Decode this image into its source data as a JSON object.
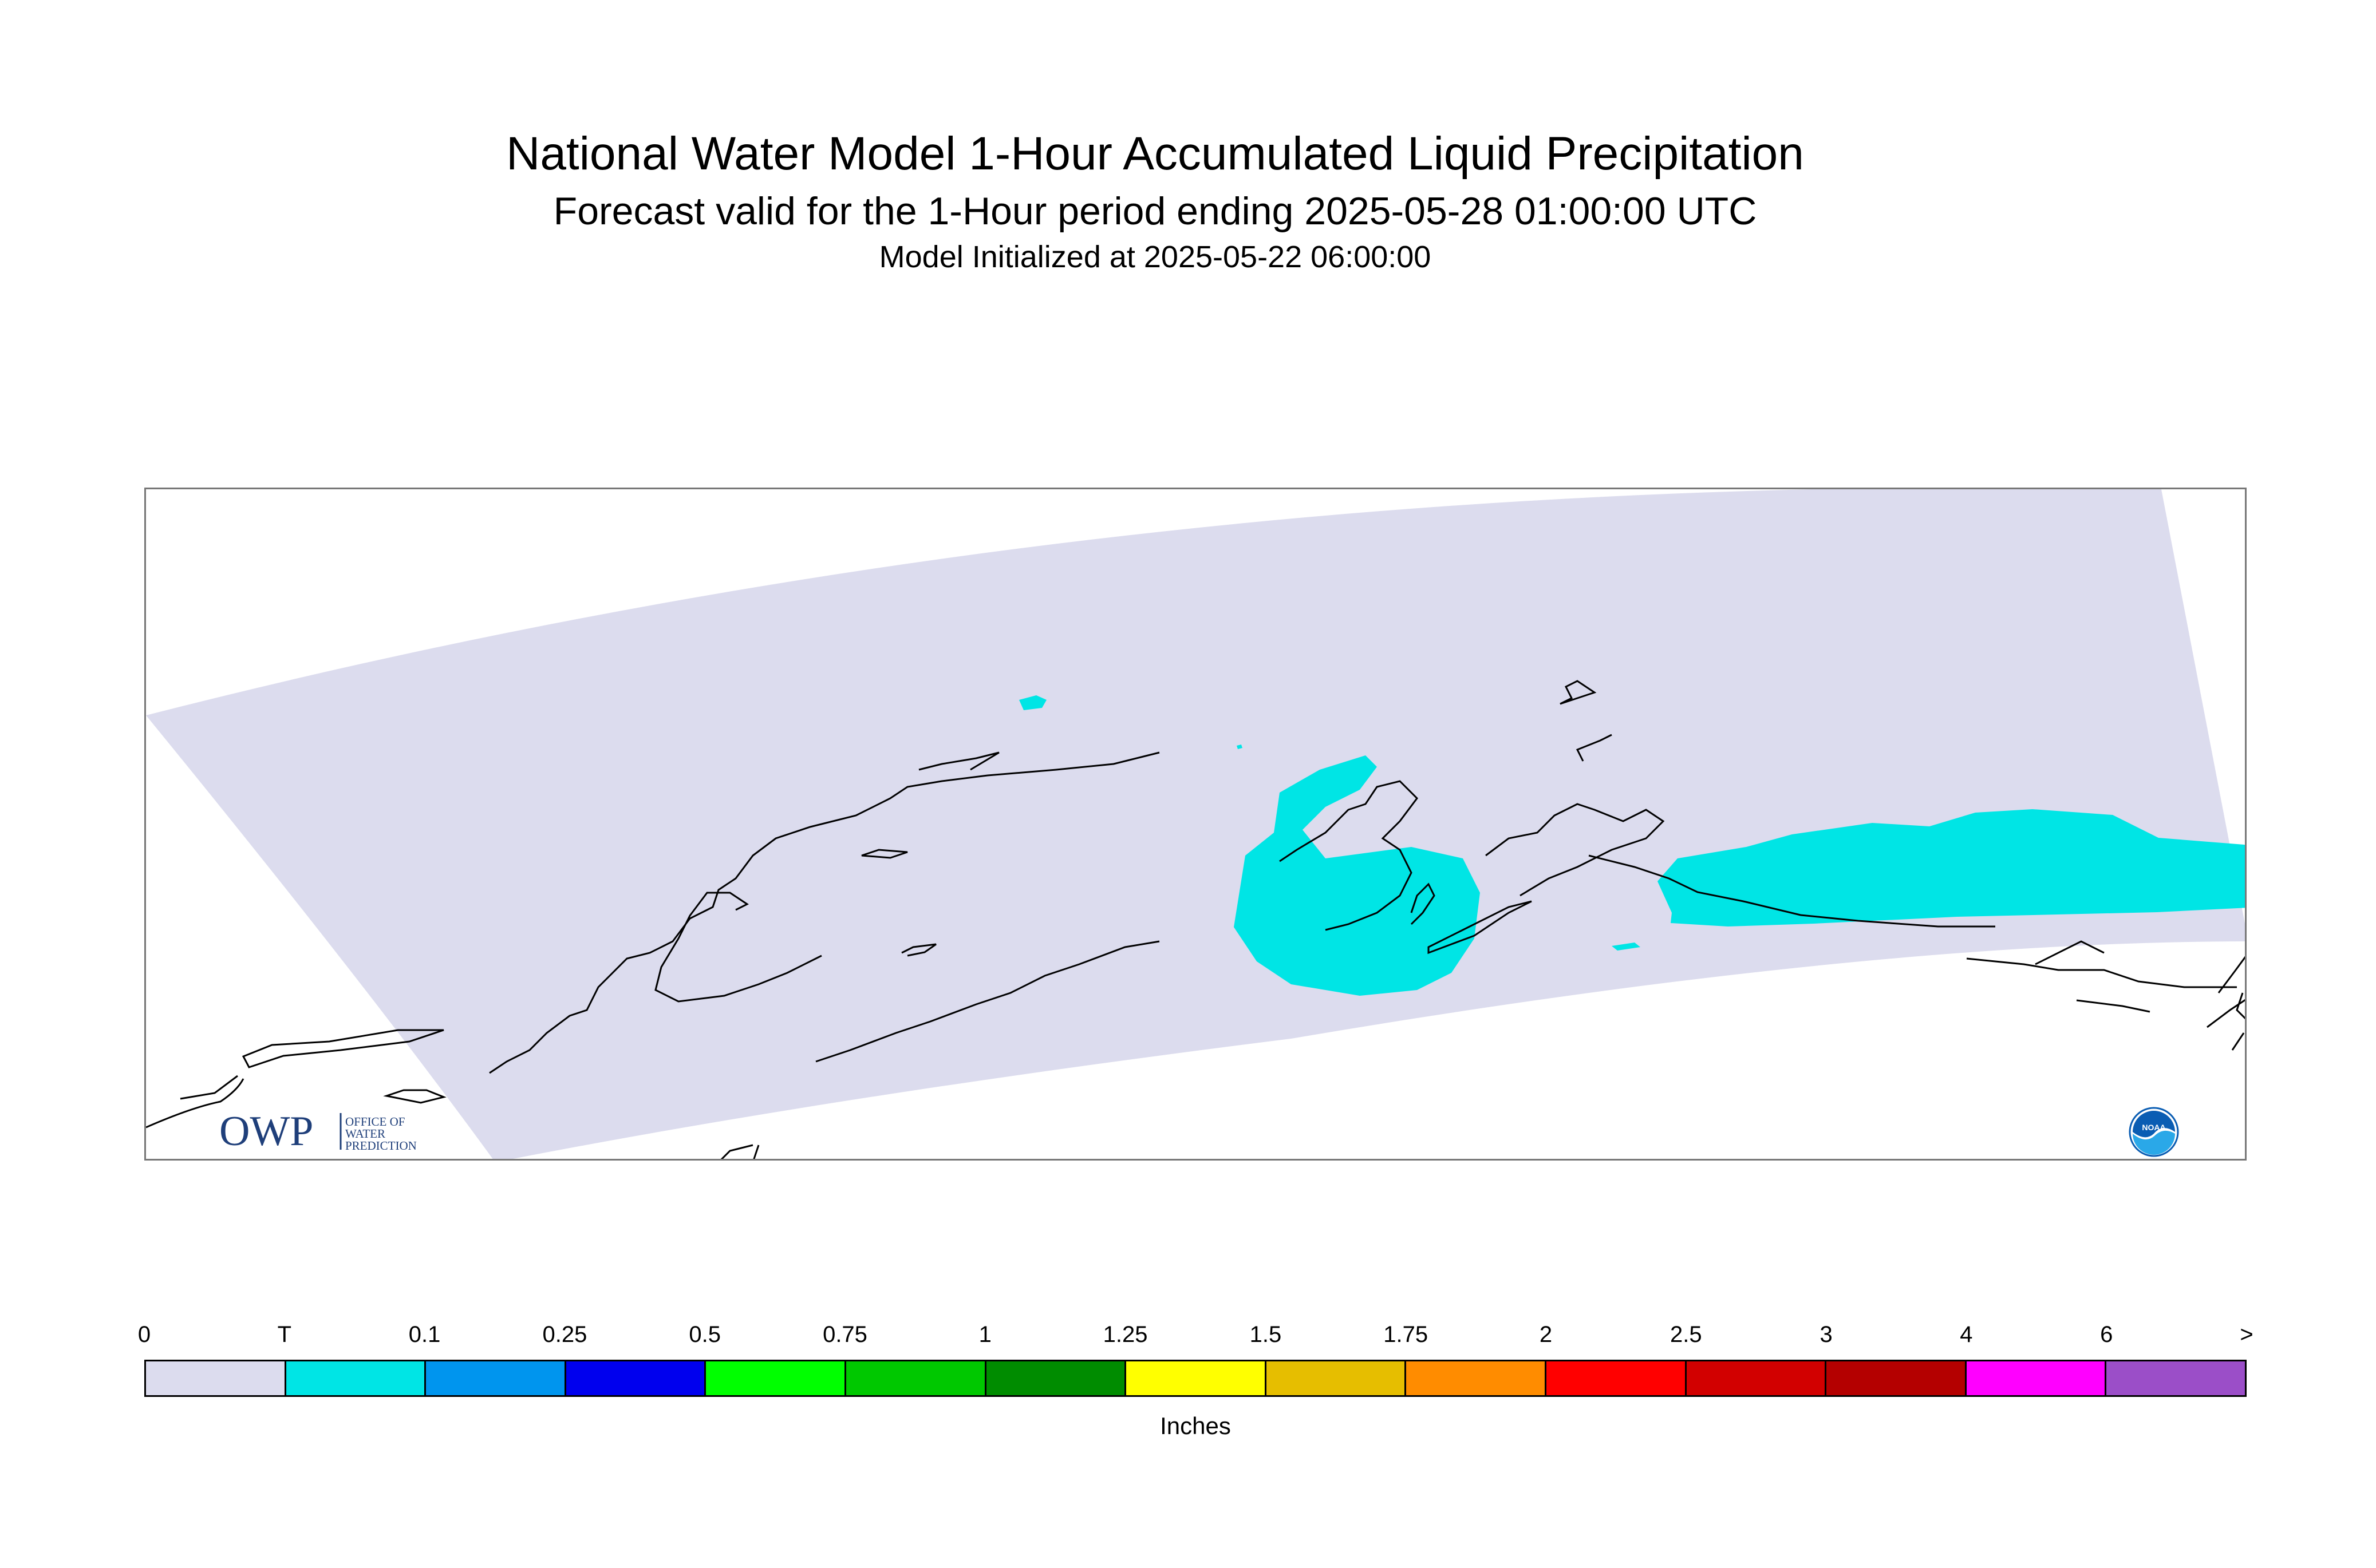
{
  "header": {
    "title": "National Water Model 1-Hour Accumulated Liquid Precipitation",
    "subtitle": "Forecast valid for the 1-Hour period ending 2025-05-28 01:00:00 UTC",
    "init_line": "Model Initialized at 2025-05-22 06:00:00"
  },
  "map": {
    "domain_fill_color": "#dcdcee",
    "precip_color": "#00e5e5",
    "coastline_color": "#000000",
    "region": "Alaska"
  },
  "logos": {
    "owp": {
      "mark": "OWP",
      "line1": "OFFICE OF",
      "line2": "WATER",
      "line3": "PREDICTION",
      "color": "#1f3f7a"
    },
    "noaa": {
      "mark": "NOAA",
      "color": "#0a5db3"
    }
  },
  "legend": {
    "units": "Inches",
    "tick_labels": [
      "0",
      "T",
      "0.1",
      "0.25",
      "0.5",
      "0.75",
      "1",
      "1.25",
      "1.5",
      "1.75",
      "2",
      "2.5",
      "3",
      "4",
      "6",
      ">"
    ],
    "colors": [
      "#dcdcee",
      "#00e5e5",
      "#0095ee",
      "#0000ee",
      "#00ff00",
      "#00c800",
      "#008c00",
      "#ffff00",
      "#e6be00",
      "#ff8c00",
      "#ff0000",
      "#d20000",
      "#b40000",
      "#ff00ff",
      "#9b4ec8"
    ]
  }
}
